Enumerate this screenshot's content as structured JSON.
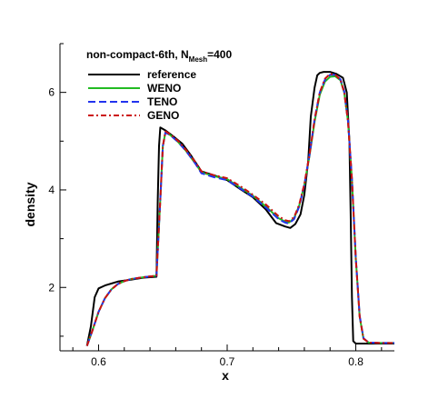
{
  "chart_data": {
    "type": "line",
    "title": {
      "main": "non-compact-6th, N",
      "subscript": "Mesh",
      "suffix": "=400"
    },
    "xlabel": "x",
    "ylabel": "density",
    "xlim": [
      0.57,
      0.83
    ],
    "ylim": [
      0.7,
      7.0
    ],
    "xticks": [
      0.6,
      0.7,
      0.8
    ],
    "xtick_labels": [
      "0.6",
      "0.7",
      "0.8"
    ],
    "yticks": [
      2,
      4,
      6
    ],
    "ytick_labels": [
      "2",
      "4",
      "6"
    ],
    "legend_position": "top-left",
    "series": [
      {
        "name": "reference",
        "color": "#000000",
        "dash": "solid",
        "x": [
          0.591,
          0.594,
          0.597,
          0.6,
          0.605,
          0.615,
          0.625,
          0.635,
          0.645,
          0.646,
          0.647,
          0.648,
          0.652,
          0.658,
          0.665,
          0.672,
          0.68,
          0.69,
          0.7,
          0.71,
          0.72,
          0.73,
          0.738,
          0.745,
          0.749,
          0.753,
          0.757,
          0.76,
          0.763,
          0.765,
          0.768,
          0.77,
          0.772,
          0.775,
          0.78,
          0.785,
          0.79,
          0.793,
          0.795,
          0.796,
          0.797,
          0.798,
          0.8,
          0.805,
          0.81,
          0.82,
          0.83
        ],
        "y": [
          0.8,
          1.2,
          1.8,
          1.98,
          2.04,
          2.12,
          2.16,
          2.2,
          2.22,
          3.8,
          4.9,
          5.28,
          5.22,
          5.1,
          4.95,
          4.7,
          4.38,
          4.3,
          4.2,
          4.02,
          3.85,
          3.6,
          3.32,
          3.25,
          3.22,
          3.3,
          3.5,
          3.9,
          4.6,
          5.5,
          6.1,
          6.35,
          6.4,
          6.42,
          6.42,
          6.38,
          6.3,
          6.0,
          5.0,
          3.5,
          1.8,
          0.9,
          0.85,
          0.85,
          0.85,
          0.85,
          0.85
        ]
      },
      {
        "name": "WENO",
        "color": "#22bb22",
        "dash": "solid",
        "x": [
          0.591,
          0.595,
          0.6,
          0.605,
          0.61,
          0.615,
          0.62,
          0.625,
          0.635,
          0.645,
          0.648,
          0.65,
          0.652,
          0.656,
          0.662,
          0.668,
          0.675,
          0.68,
          0.69,
          0.7,
          0.71,
          0.72,
          0.73,
          0.74,
          0.745,
          0.748,
          0.752,
          0.756,
          0.76,
          0.764,
          0.768,
          0.772,
          0.776,
          0.78,
          0.784,
          0.788,
          0.791,
          0.794,
          0.797,
          0.8,
          0.803,
          0.806,
          0.81,
          0.82,
          0.83
        ],
        "y": [
          0.8,
          1.1,
          1.5,
          1.78,
          1.96,
          2.07,
          2.13,
          2.17,
          2.21,
          2.24,
          3.8,
          4.9,
          5.18,
          5.12,
          4.98,
          4.8,
          4.55,
          4.36,
          4.28,
          4.22,
          4.05,
          3.88,
          3.66,
          3.42,
          3.35,
          3.33,
          3.42,
          3.68,
          4.1,
          4.7,
          5.4,
          5.95,
          6.22,
          6.32,
          6.33,
          6.25,
          6.0,
          5.4,
          4.2,
          2.6,
          1.4,
          0.95,
          0.87,
          0.86,
          0.86
        ]
      },
      {
        "name": "TENO",
        "color": "#2233ee",
        "dash": "dashed",
        "x": [
          0.591,
          0.595,
          0.6,
          0.605,
          0.61,
          0.615,
          0.62,
          0.625,
          0.635,
          0.645,
          0.648,
          0.65,
          0.652,
          0.656,
          0.662,
          0.668,
          0.675,
          0.68,
          0.69,
          0.7,
          0.71,
          0.72,
          0.73,
          0.74,
          0.745,
          0.748,
          0.752,
          0.756,
          0.76,
          0.764,
          0.768,
          0.772,
          0.776,
          0.78,
          0.784,
          0.788,
          0.791,
          0.794,
          0.797,
          0.8,
          0.803,
          0.806,
          0.81,
          0.82,
          0.83
        ],
        "y": [
          0.8,
          1.1,
          1.5,
          1.78,
          1.96,
          2.07,
          2.13,
          2.17,
          2.21,
          2.24,
          3.8,
          4.9,
          5.18,
          5.12,
          4.98,
          4.8,
          4.55,
          4.34,
          4.26,
          4.2,
          4.03,
          3.86,
          3.64,
          3.4,
          3.33,
          3.31,
          3.4,
          3.66,
          4.1,
          4.72,
          5.45,
          6.0,
          6.26,
          6.36,
          6.36,
          6.27,
          6.02,
          5.42,
          4.22,
          2.62,
          1.42,
          0.96,
          0.87,
          0.86,
          0.86
        ]
      },
      {
        "name": "GENO",
        "color": "#cc1111",
        "dash": "dashdot",
        "x": [
          0.591,
          0.595,
          0.6,
          0.605,
          0.61,
          0.615,
          0.62,
          0.625,
          0.635,
          0.645,
          0.648,
          0.65,
          0.652,
          0.656,
          0.662,
          0.668,
          0.675,
          0.68,
          0.69,
          0.7,
          0.71,
          0.72,
          0.73,
          0.74,
          0.745,
          0.748,
          0.752,
          0.756,
          0.76,
          0.764,
          0.768,
          0.772,
          0.776,
          0.78,
          0.784,
          0.788,
          0.791,
          0.794,
          0.797,
          0.8,
          0.803,
          0.806,
          0.81,
          0.82,
          0.83
        ],
        "y": [
          0.8,
          1.1,
          1.5,
          1.78,
          1.96,
          2.07,
          2.13,
          2.17,
          2.21,
          2.24,
          3.8,
          4.9,
          5.2,
          5.14,
          5.0,
          4.82,
          4.58,
          4.38,
          4.3,
          4.24,
          4.08,
          3.9,
          3.7,
          3.46,
          3.38,
          3.36,
          3.44,
          3.7,
          4.12,
          4.72,
          5.44,
          6.0,
          6.28,
          6.38,
          6.36,
          6.26,
          6.0,
          5.4,
          4.2,
          2.6,
          1.4,
          0.95,
          0.87,
          0.86,
          0.86
        ]
      }
    ]
  }
}
